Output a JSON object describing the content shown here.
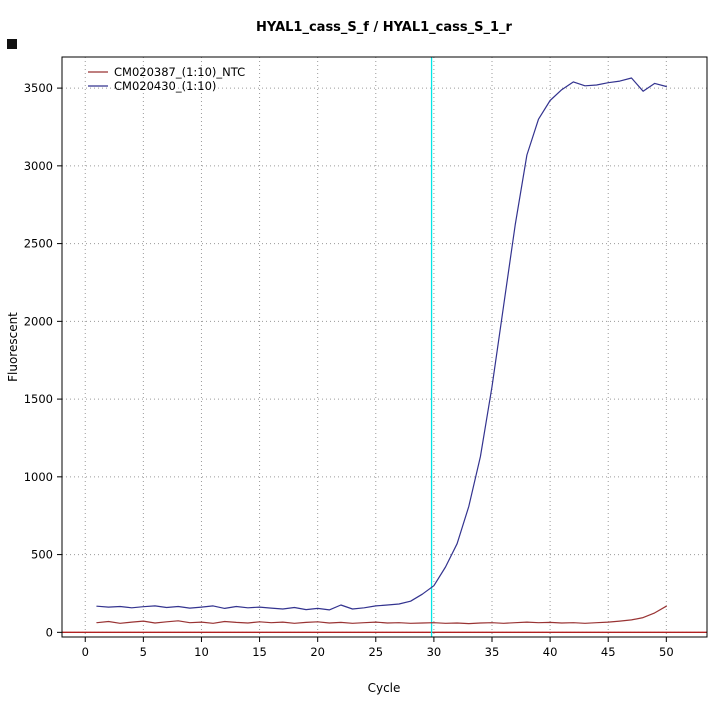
{
  "page": {
    "background": "#ffffff"
  },
  "chart_data": {
    "type": "line",
    "title": "HYAL1_cass_S_f / HYAL1_cass_S_1_r",
    "xlabel": "Cycle",
    "ylabel": "Fluorescent",
    "xlim": [
      -2,
      53.5
    ],
    "ylim": [
      -30,
      3700
    ],
    "xticks": [
      0,
      5,
      10,
      15,
      20,
      25,
      30,
      35,
      40,
      45,
      50
    ],
    "yticks": [
      0,
      500,
      1000,
      1500,
      2000,
      2500,
      3000,
      3500
    ],
    "grid": true,
    "grid_color": "#9a9a9a",
    "legend_position": "top-left",
    "baseline": {
      "y": 0,
      "color": "#b22222"
    },
    "threshold_vline": {
      "x": 29.8,
      "color": "#00e6e6"
    },
    "x": [
      1,
      2,
      3,
      4,
      5,
      6,
      7,
      8,
      9,
      10,
      11,
      12,
      13,
      14,
      15,
      16,
      17,
      18,
      19,
      20,
      21,
      22,
      23,
      24,
      25,
      26,
      27,
      28,
      29,
      30,
      31,
      32,
      33,
      34,
      35,
      36,
      37,
      38,
      39,
      40,
      41,
      42,
      43,
      44,
      45,
      46,
      47,
      48,
      49,
      50
    ],
    "series": [
      {
        "name": "CM020387_(1:10)_NTC",
        "color": "#993333",
        "values": [
          62,
          70,
          58,
          66,
          72,
          60,
          68,
          74,
          62,
          66,
          58,
          70,
          64,
          60,
          68,
          62,
          66,
          58,
          64,
          68,
          60,
          64,
          58,
          62,
          66,
          60,
          62,
          58,
          60,
          62,
          58,
          60,
          56,
          60,
          62,
          58,
          62,
          66,
          62,
          64,
          60,
          62,
          58,
          62,
          66,
          72,
          80,
          95,
          125,
          168
        ]
      },
      {
        "name": "CM020430_(1:10)",
        "color": "#33338f",
        "values": [
          168,
          162,
          166,
          158,
          165,
          170,
          160,
          166,
          156,
          162,
          170,
          154,
          166,
          158,
          162,
          156,
          150,
          160,
          146,
          154,
          144,
          176,
          150,
          158,
          170,
          176,
          182,
          200,
          245,
          300,
          420,
          570,
          810,
          1130,
          1580,
          2100,
          2620,
          3070,
          3300,
          3420,
          3490,
          3540,
          3515,
          3520,
          3535,
          3545,
          3565,
          3480,
          3530,
          3510
        ]
      }
    ]
  }
}
